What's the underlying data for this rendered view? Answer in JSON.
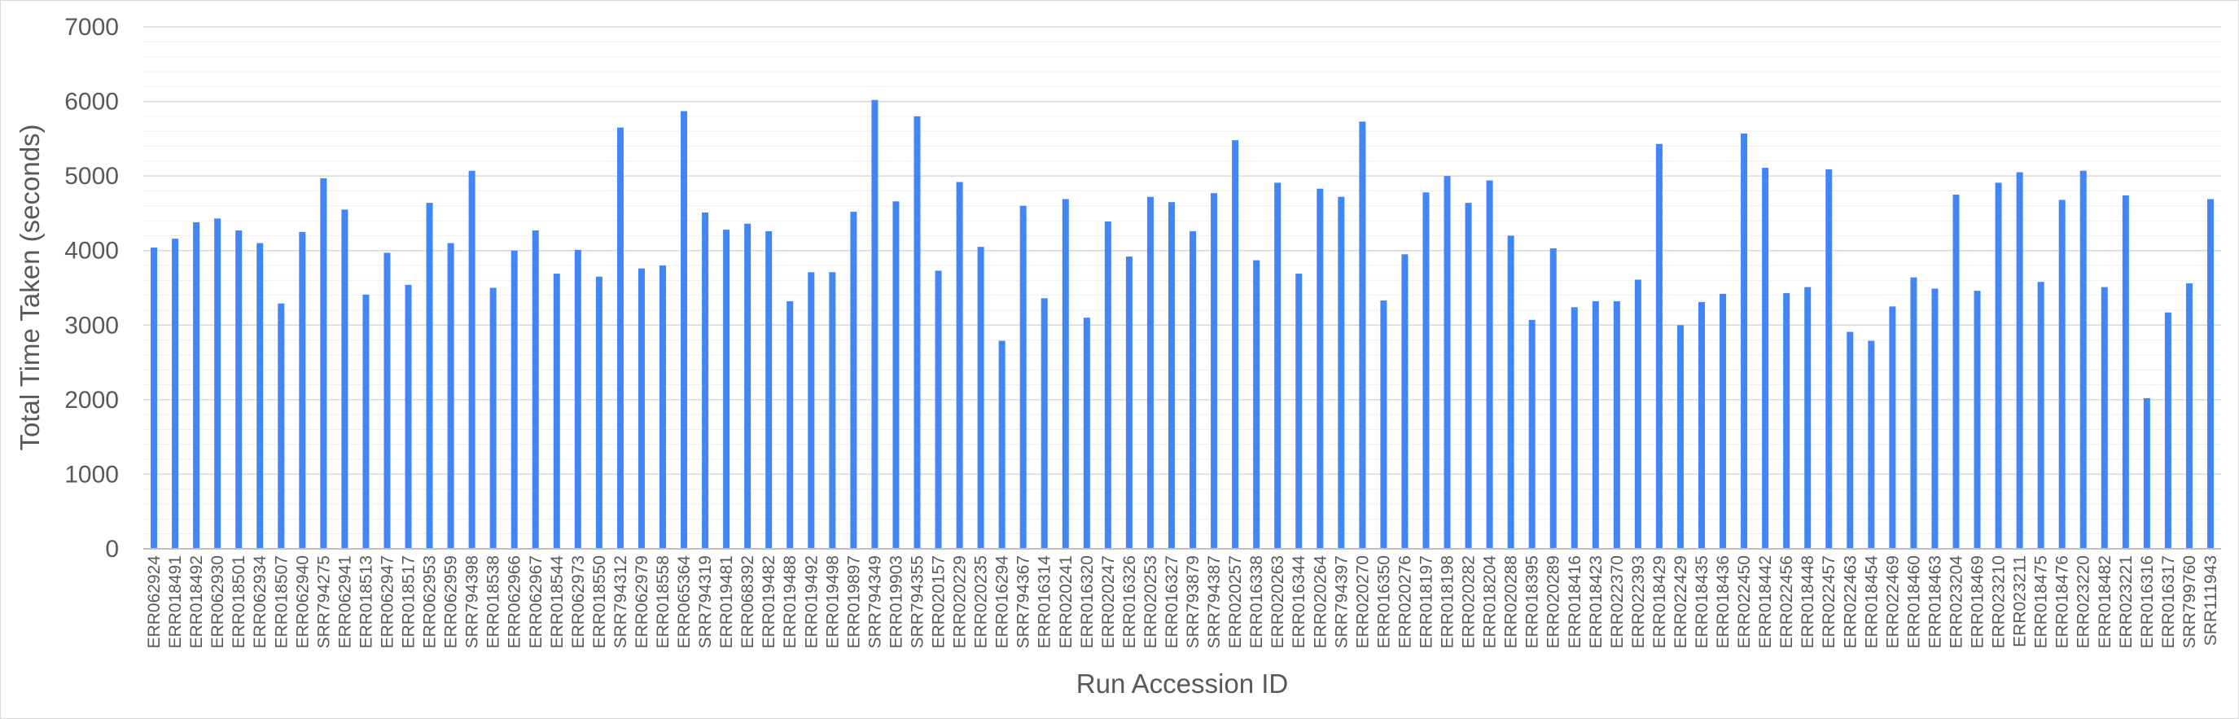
{
  "chart_data": {
    "type": "bar",
    "title": "",
    "xlabel": "Run Accession ID",
    "ylabel": "Total Time Taken (seconds)",
    "ylim": [
      0,
      7000
    ],
    "yticks": [
      0,
      1000,
      2000,
      3000,
      4000,
      5000,
      6000,
      7000
    ],
    "grid": true,
    "minor_grid_step": 200,
    "legend": "none",
    "colors": {
      "bar": "#4285f4",
      "major_grid": "#d9d9d9",
      "minor_grid": "#efefef",
      "text": "#595959"
    },
    "categories": [
      "ERR062924",
      "ERR018491",
      "ERR018492",
      "ERR062930",
      "ERR018501",
      "ERR062934",
      "ERR018507",
      "ERR062940",
      "SRR794275",
      "ERR062941",
      "ERR018513",
      "ERR062947",
      "ERR018517",
      "ERR062953",
      "ERR062959",
      "SRR794398",
      "ERR018538",
      "ERR062966",
      "ERR062967",
      "ERR018544",
      "ERR062973",
      "ERR018550",
      "SRR794312",
      "ERR062979",
      "ERR018558",
      "ERR065364",
      "SRR794319",
      "ERR019481",
      "ERR068392",
      "ERR019482",
      "ERR019488",
      "ERR019492",
      "ERR019498",
      "ERR019897",
      "SRR794349",
      "ERR019903",
      "SRR794355",
      "ERR020157",
      "ERR020229",
      "ERR020235",
      "ERR016294",
      "SRR794367",
      "ERR016314",
      "ERR020241",
      "ERR016320",
      "ERR020247",
      "ERR016326",
      "ERR020253",
      "ERR016327",
      "SRR793879",
      "SRR794387",
      "ERR020257",
      "ERR016338",
      "ERR020263",
      "ERR016344",
      "ERR020264",
      "SRR794397",
      "ERR020270",
      "ERR016350",
      "ERR020276",
      "ERR018197",
      "ERR018198",
      "ERR020282",
      "ERR018204",
      "ERR020288",
      "ERR018395",
      "ERR020289",
      "ERR018416",
      "ERR018423",
      "ERR022370",
      "ERR022393",
      "ERR018429",
      "ERR022429",
      "ERR018435",
      "ERR018436",
      "ERR022450",
      "ERR018442",
      "ERR022456",
      "ERR018448",
      "ERR022457",
      "ERR022463",
      "ERR018454",
      "ERR022469",
      "ERR018460",
      "ERR018463",
      "ERR023204",
      "ERR018469",
      "ERR023210",
      "ERR023211",
      "ERR018475",
      "ERR018476",
      "ERR023220",
      "ERR018482",
      "ERR023221",
      "ERR016316",
      "ERR016317",
      "SRR799760",
      "SRR111943"
    ],
    "values": [
      4040,
      4160,
      4380,
      4430,
      4270,
      4100,
      3290,
      4250,
      4970,
      4550,
      3410,
      3970,
      3540,
      4640,
      4100,
      5070,
      3500,
      4000,
      4270,
      3690,
      4010,
      3650,
      5650,
      3760,
      3800,
      5870,
      4510,
      4280,
      4360,
      4260,
      3320,
      3710,
      3710,
      4520,
      6020,
      4660,
      5800,
      3730,
      4920,
      4050,
      2790,
      4600,
      3360,
      4690,
      3100,
      4390,
      3920,
      4720,
      4650,
      4260,
      4770,
      5480,
      3870,
      4910,
      3690,
      4830,
      4720,
      5730,
      3330,
      3950,
      4780,
      5000,
      4640,
      4940,
      4200,
      3070,
      4030,
      3240,
      3320,
      3320,
      3610,
      5430,
      3000,
      3310,
      3420,
      5570,
      5110,
      3430,
      3510,
      5090,
      2910,
      2790,
      3250,
      3640,
      3490,
      4750,
      3460,
      4910,
      5050,
      3580,
      4680,
      5070,
      3510,
      4740,
      2020,
      3170,
      3560,
      4690
    ]
  }
}
